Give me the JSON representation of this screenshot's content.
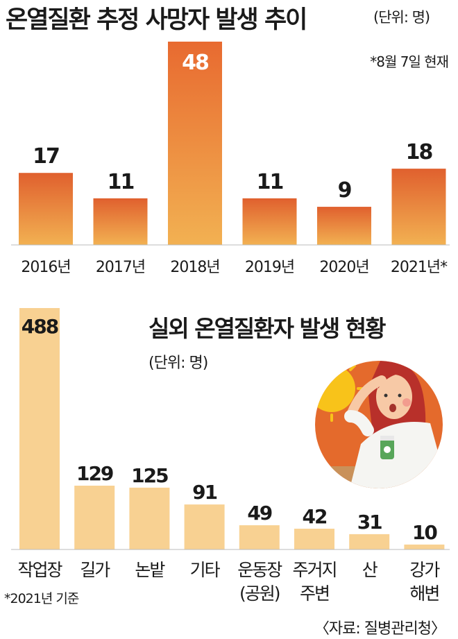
{
  "chart_data": [
    {
      "type": "bar",
      "title": "온열질환 추정 사망자 발생 추이",
      "unit": "(단위: 명)",
      "note": "*8월 7일 현재",
      "categories": [
        "2016년",
        "2017년",
        "2018년",
        "2019년",
        "2020년",
        "2021년*"
      ],
      "values": [
        17,
        11,
        48,
        11,
        9,
        18
      ],
      "ylim": [
        0,
        48
      ],
      "grid": false,
      "colors": {
        "top": "#e0602e",
        "bottom": "#f2b152"
      }
    },
    {
      "type": "bar",
      "title": "실외 온열질환자 발생 현황",
      "unit": "(단위: 명)",
      "note": "*2021년 기준",
      "categories": [
        [
          "작업장"
        ],
        [
          "길가"
        ],
        [
          "논밭"
        ],
        [
          "기타"
        ],
        [
          "운동장",
          "(공원)"
        ],
        [
          "주거지",
          "주변"
        ],
        [
          "산"
        ],
        [
          "강가",
          "해변"
        ]
      ],
      "values": [
        488,
        129,
        125,
        91,
        49,
        42,
        31,
        10
      ],
      "ylim": [
        0,
        488
      ],
      "grid": false,
      "colors": {
        "bar": "#f8d192"
      }
    }
  ],
  "source": "〈자료: 질병관리청〉",
  "illustration": "person-suffering-heat-icon"
}
